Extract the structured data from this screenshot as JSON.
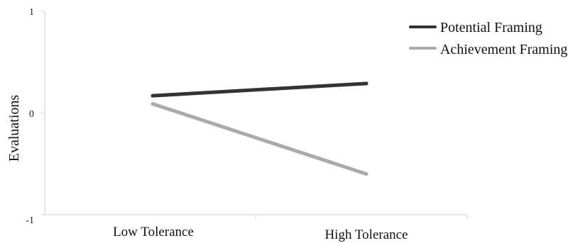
{
  "chart_data": {
    "type": "line",
    "title": "",
    "xlabel": "",
    "ylabel": "Evaluations",
    "categories": [
      "Low Tolerance",
      "High Tolerance"
    ],
    "ylim": [
      -1,
      1
    ],
    "yticks": [
      "1",
      "0",
      "-1"
    ],
    "grid": false,
    "legend_position": "top-right",
    "series": [
      {
        "name": "Potential Framing",
        "values": [
          0.17,
          0.29
        ],
        "color": "#333333"
      },
      {
        "name": "Achievement Framing",
        "values": [
          0.09,
          -0.6
        ],
        "color": "#aaaaaa"
      }
    ]
  }
}
